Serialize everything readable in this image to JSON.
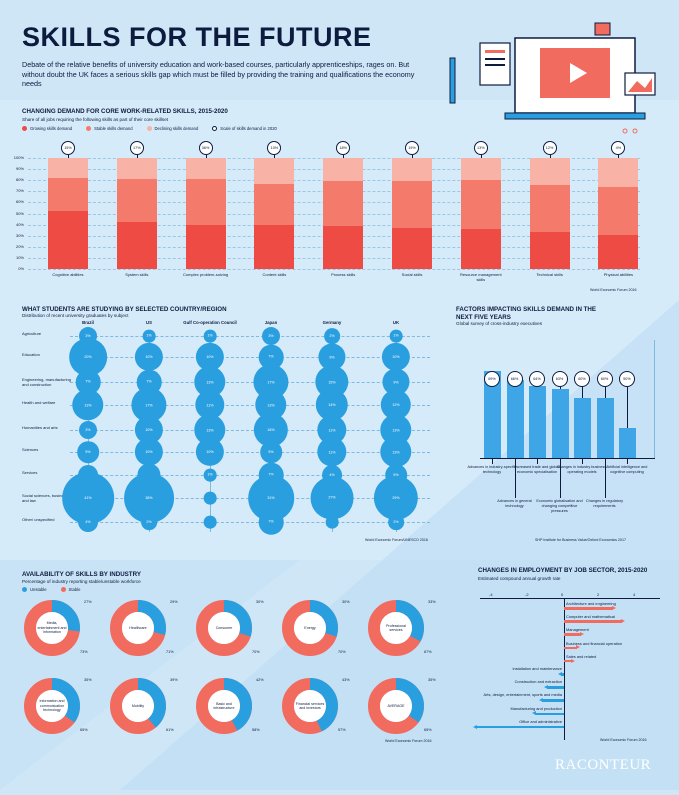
{
  "title": "SKILLS FOR THE FUTURE",
  "intro": "Debate of the relative benefits of university education and work-based courses, particularly apprenticeships, rages on. But without doubt the UK faces a serious skills gap which must be filled by providing the training and qualifications the economy needs",
  "logo": "RACONTEUR",
  "colors": {
    "growing": "#ef4b45",
    "stable": "#f47a6c",
    "declining": "#f9b3a6",
    "bubble": "#2a9fe0",
    "unstable": "#2a9fe0",
    "stable_donut": "#f26b5f"
  },
  "chart_data": [
    {
      "type": "bar",
      "title": "CHANGING DEMAND FOR CORE WORK-RELATED SKILLS, 2015-2020",
      "subtitle": "Share of all jobs requiring the following skills as part of their core skillset",
      "legend": [
        "Growing skills demand",
        "Stable skills demand",
        "Declining skills demand",
        "Scale of skills demand in 2020"
      ],
      "categories": [
        "Cognitive abilities",
        "System skills",
        "Complex problem-solving",
        "Content skills",
        "Process skills",
        "Social skills",
        "Resource management skills",
        "Technical skills",
        "Physical abilities"
      ],
      "yticks": [
        "100%",
        "90%",
        "80%",
        "70%",
        "60%",
        "50%",
        "40%",
        "30%",
        "20%",
        "10%",
        "0%"
      ],
      "ylim": [
        0,
        100
      ],
      "series": [
        {
          "name": "Growing skills demand",
          "values": [
            52,
            42,
            40,
            40,
            39,
            37,
            36,
            33,
            31
          ]
        },
        {
          "name": "Stable skills demand",
          "values": [
            30,
            39,
            41,
            37,
            40,
            42,
            44,
            43,
            43
          ]
        },
        {
          "name": "Declining skills demand",
          "values": [
            18,
            19,
            19,
            23,
            21,
            21,
            20,
            24,
            26
          ]
        }
      ],
      "scale_2020": [
        "15%",
        "17%",
        "36%",
        "10%",
        "18%",
        "19%",
        "13%",
        "12%",
        "4%"
      ],
      "source": "World Economic Forum 2016"
    },
    {
      "type": "scatter",
      "title": "WHAT STUDENTS ARE STUDYING BY SELECTED COUNTRY/REGION",
      "subtitle": "Distribution of recent university graduates by subject",
      "countries": [
        "Brazil",
        "US",
        "Gulf Co-operation Council",
        "Japan",
        "Germany",
        "UK"
      ],
      "subjects": [
        "Agriculture",
        "Education",
        "Engineering, manufacturing and construction",
        "Health and welfare",
        "Humanities and arts",
        "Sciences",
        "Services",
        "Social sciences, business and law",
        "Other/ unspecified"
      ],
      "values": [
        [
          "3%",
          "1%",
          "1%",
          "3%",
          "2%",
          "1%"
        ],
        [
          "20%",
          "10%",
          "10%",
          "7%",
          "9%",
          "10%"
        ],
        [
          "7%",
          "7%",
          "13%",
          "17%",
          "15%",
          "9%"
        ],
        [
          "13%",
          "17%",
          "11%",
          "13%",
          "14%",
          "12%"
        ],
        [
          "3%",
          "10%",
          "13%",
          "16%",
          "11%",
          "13%"
        ],
        [
          "5%",
          "10%",
          "10%",
          "5%",
          "11%",
          "13%"
        ],
        [
          "4%",
          "6%",
          "1%",
          "7%",
          "4%",
          "5%"
        ],
        [
          "41%",
          "38%",
          "",
          "31%",
          "27%",
          "29%"
        ],
        [
          "4%",
          "2%",
          "",
          "7%",
          "",
          "2%"
        ]
      ],
      "source": "World Economic Forum/UNESCO 2016"
    },
    {
      "type": "bar",
      "title": "FACTORS IMPACTING SKILLS DEMAND IN THE NEXT FIVE YEARS",
      "subtitle": "Global survey of cross-industry executives",
      "categories": [
        "Advances in industry-specific technology",
        "Advances in general technology",
        "Increased trade and global economic specialisation",
        "Economic globalisation and changing competitive pressures",
        "Changes in industry business/ operating models",
        "Changes in regulatory requirements",
        "Artificial intelligence and cognitive computing"
      ],
      "values": [
        69,
        66,
        64,
        63,
        60,
        60,
        50
      ],
      "labels": [
        "69%",
        "66%",
        "64%",
        "63%",
        "60%",
        "60%",
        "50%"
      ],
      "source": "SHP Institute for Business Value/Oxford Economics 2017"
    },
    {
      "type": "pie",
      "title": "AVAILABILITY OF SKILLS BY INDUSTRY",
      "subtitle": "Percentage of industry reporting stable/unstable workforce",
      "legend": [
        "Unstable",
        "Stable"
      ],
      "industries": [
        {
          "name": "Media, entertainment and information",
          "unstable": 27,
          "stable": 73,
          "unstable_label": "27%",
          "stable_label": "73%"
        },
        {
          "name": "Healthcare",
          "unstable": 29,
          "stable": 71,
          "unstable_label": "29%",
          "stable_label": "71%"
        },
        {
          "name": "Consumer",
          "unstable": 30,
          "stable": 70,
          "unstable_label": "30%",
          "stable_label": "70%"
        },
        {
          "name": "Energy",
          "unstable": 30,
          "stable": 70,
          "unstable_label": "30%",
          "stable_label": "70%"
        },
        {
          "name": "Professional services",
          "unstable": 33,
          "stable": 67,
          "unstable_label": "33%",
          "stable_label": "67%"
        },
        {
          "name": "Information and communication technology",
          "unstable": 35,
          "stable": 65,
          "unstable_label": "35%",
          "stable_label": "65%"
        },
        {
          "name": "Mobility",
          "unstable": 39,
          "stable": 61,
          "unstable_label": "39%",
          "stable_label": "61%"
        },
        {
          "name": "Basic and infrastructure",
          "unstable": 42,
          "stable": 58,
          "unstable_label": "42%",
          "stable_label": "58%"
        },
        {
          "name": "Financial services and investors",
          "unstable": 43,
          "stable": 57,
          "unstable_label": "43%",
          "stable_label": "57%"
        },
        {
          "name": "AVERAGE",
          "unstable": 35,
          "stable": 65,
          "unstable_label": "35%",
          "stable_label": "65%"
        }
      ],
      "source": "World Economic Forum 2016"
    },
    {
      "type": "bar",
      "title": "CHANGES IN EMPLOYMENT BY JOB SECTOR, 2015-2020",
      "subtitle": "Estimated compound annual growth rate",
      "xticks": [
        "-4",
        "-2",
        "0",
        "2",
        "4"
      ],
      "xlim": [
        -5,
        5
      ],
      "categories": [
        "Architecture and engineering",
        "Computer and mathematical",
        "Management",
        "Business and financial operation",
        "Sales and related",
        "Installation and maintenance",
        "Construction and extraction",
        "Arts, design, entertainment, sports and media",
        "Manufacturing and production",
        "Office and administrative"
      ],
      "values": [
        2.7,
        3.2,
        0.97,
        0.7,
        0.46,
        -0.15,
        -0.93,
        -1.2,
        -1.63,
        -4.91
      ],
      "source": "World Economic Forum 2016"
    }
  ]
}
